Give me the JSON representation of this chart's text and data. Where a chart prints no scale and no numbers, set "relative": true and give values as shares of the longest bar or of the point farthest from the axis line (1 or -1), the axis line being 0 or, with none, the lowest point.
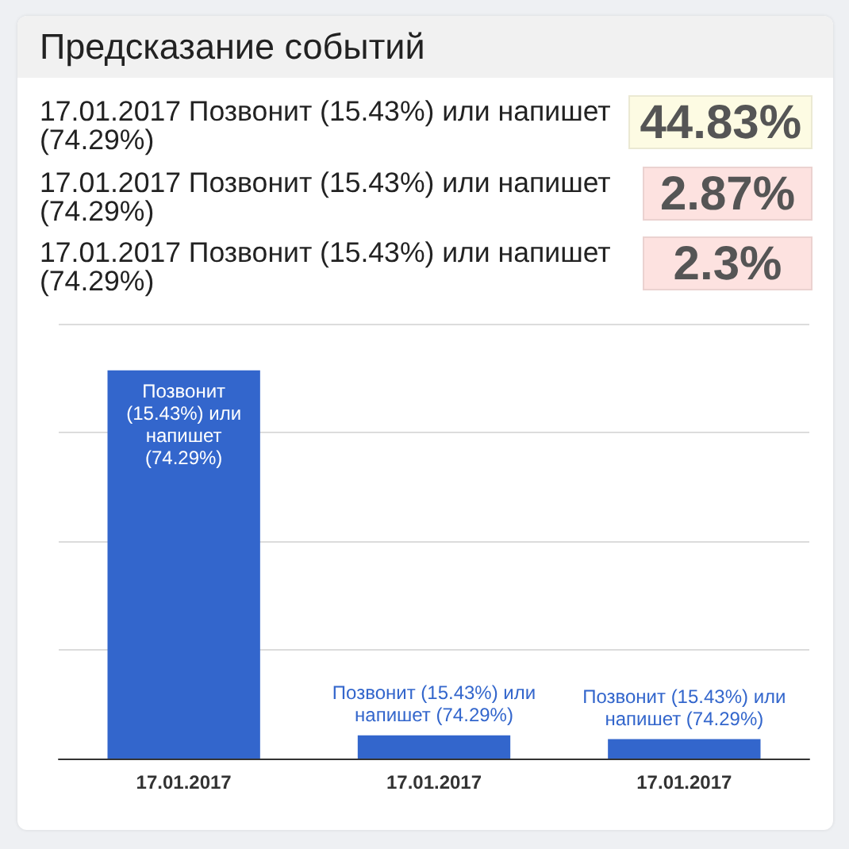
{
  "chart_data": [
    {
      "type": "other",
      "title": "Предсказание событий",
      "categories": [
        "17.01.2017 Позвонит (15.43%) или напишет (74.29%)",
        "17.01.2017 Позвонит (15.43%) или напишет (74.29%)",
        "17.01.2017 Позвонит (15.43%) или напишет (74.29%)"
      ],
      "value_labels": [
        "44.83%",
        "2.87%",
        "2.3%"
      ],
      "colors": [
        "#fdfbe3",
        "#fde2e0",
        "#fde2e0"
      ]
    },
    {
      "type": "bar",
      "relative": true,
      "categories": [
        "17.01.2017",
        "17.01.2017",
        "17.01.2017"
      ],
      "values": [
        1,
        0.06,
        0.05
      ],
      "color": "#3366cc",
      "grid": "y",
      "annotations": [
        "Позвонит (15.43%) или напишет (74.29%)",
        "Позвонит (15.43%) или напишет (74.29%)",
        "Позвонит (15.43%) или напишет (74.29%)"
      ]
    }
  ]
}
